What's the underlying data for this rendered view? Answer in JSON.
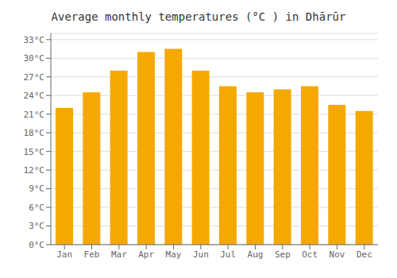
{
  "chart_data": {
    "type": "bar",
    "title": "Average monthly temperatures (°C ) in Dhārūr",
    "categories": [
      "Jan",
      "Feb",
      "Mar",
      "Apr",
      "May",
      "Jun",
      "Jul",
      "Aug",
      "Sep",
      "Oct",
      "Nov",
      "Dec"
    ],
    "values": [
      22.0,
      24.5,
      28.0,
      31.0,
      31.5,
      28.0,
      25.5,
      24.5,
      25.0,
      25.5,
      22.5,
      21.5
    ],
    "color": "#F5A800",
    "ylim": [
      0,
      34
    ],
    "yticks": [
      {
        "value": 0,
        "label": "0°C"
      },
      {
        "value": 3,
        "label": "3°C"
      },
      {
        "value": 6,
        "label": "6°C"
      },
      {
        "value": 9,
        "label": "9°C"
      },
      {
        "value": 12,
        "label": "12°C"
      },
      {
        "value": 15,
        "label": "15°C"
      },
      {
        "value": 18,
        "label": "18°C"
      },
      {
        "value": 21,
        "label": "21°C"
      },
      {
        "value": 24,
        "label": "24°C"
      },
      {
        "value": 27,
        "label": "27°C"
      },
      {
        "value": 30,
        "label": "30°C"
      },
      {
        "value": 33,
        "label": "33°C"
      }
    ],
    "grid": true
  }
}
